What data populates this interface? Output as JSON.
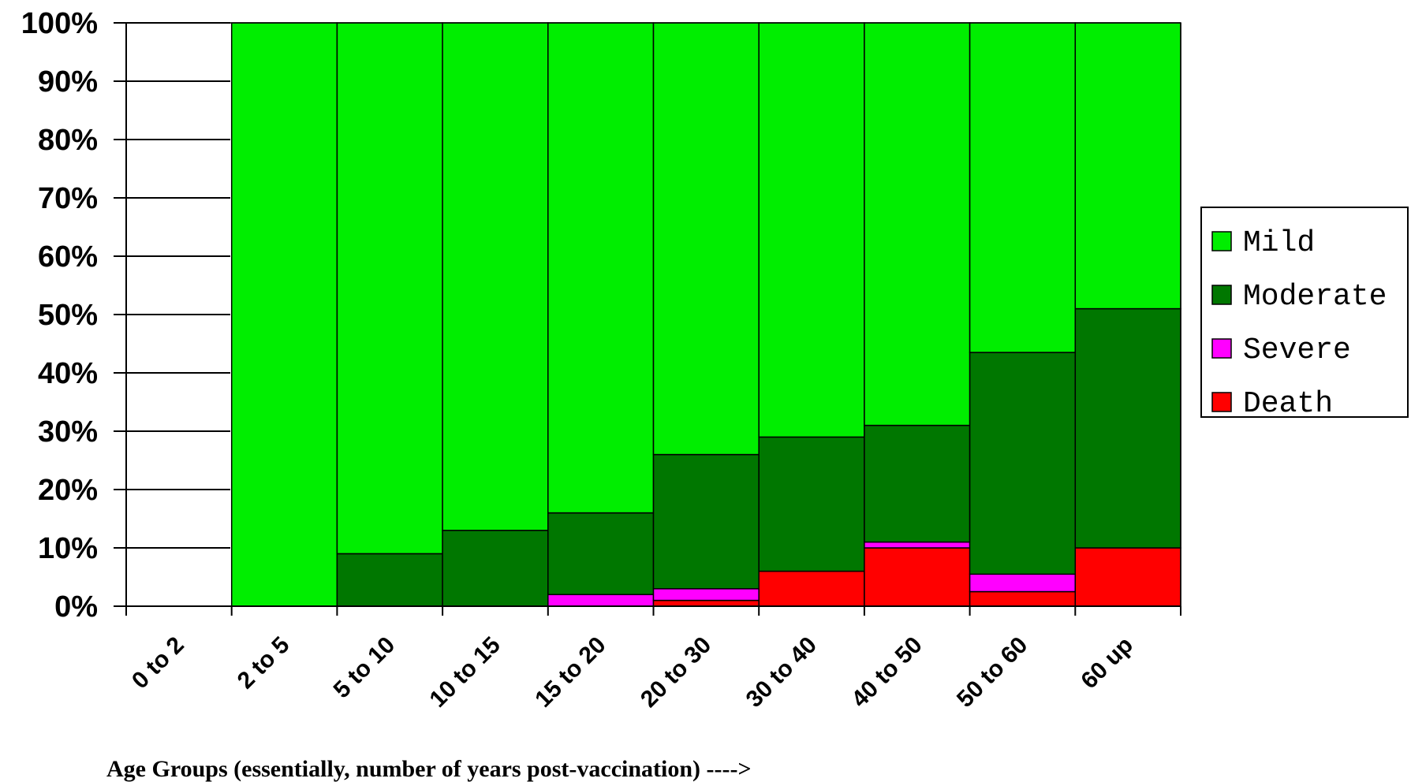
{
  "chart_data": {
    "type": "bar",
    "stacked": true,
    "normalized_percent": true,
    "categories": [
      "0 to 2",
      "2 to 5",
      "5 to 10",
      "10 to 15",
      "15 to 20",
      "20 to 30",
      "30 to 40",
      "40 to 50",
      "50 to 60",
      "60 up"
    ],
    "series": [
      {
        "name": "Death",
        "color": "#ff0000",
        "values": [
          0,
          0,
          0,
          0,
          0,
          1,
          6,
          10,
          2.5,
          10
        ]
      },
      {
        "name": "Severe",
        "color": "#ff00ff",
        "values": [
          0,
          0,
          0,
          0,
          2,
          2,
          0,
          1,
          3,
          0
        ]
      },
      {
        "name": "Moderate",
        "color": "#007700",
        "values": [
          0,
          0,
          9,
          13,
          14,
          23,
          23,
          20,
          38,
          41
        ]
      },
      {
        "name": "Mild",
        "color": "#00ee00",
        "values": [
          0,
          100,
          91,
          87,
          84,
          74,
          71,
          69,
          56.5,
          49
        ]
      }
    ],
    "legend_order": [
      "Mild",
      "Moderate",
      "Severe",
      "Death"
    ],
    "legend_position": "right",
    "ylim": [
      0,
      100
    ],
    "yticks": [
      "0%",
      "10%",
      "20%",
      "30%",
      "40%",
      "50%",
      "60%",
      "70%",
      "80%",
      "90%",
      "100%"
    ],
    "xlabel": "Age Groups (essentially, number of years post-vaccination) ---->",
    "ylabel": "",
    "title": "",
    "gridlines": false
  }
}
